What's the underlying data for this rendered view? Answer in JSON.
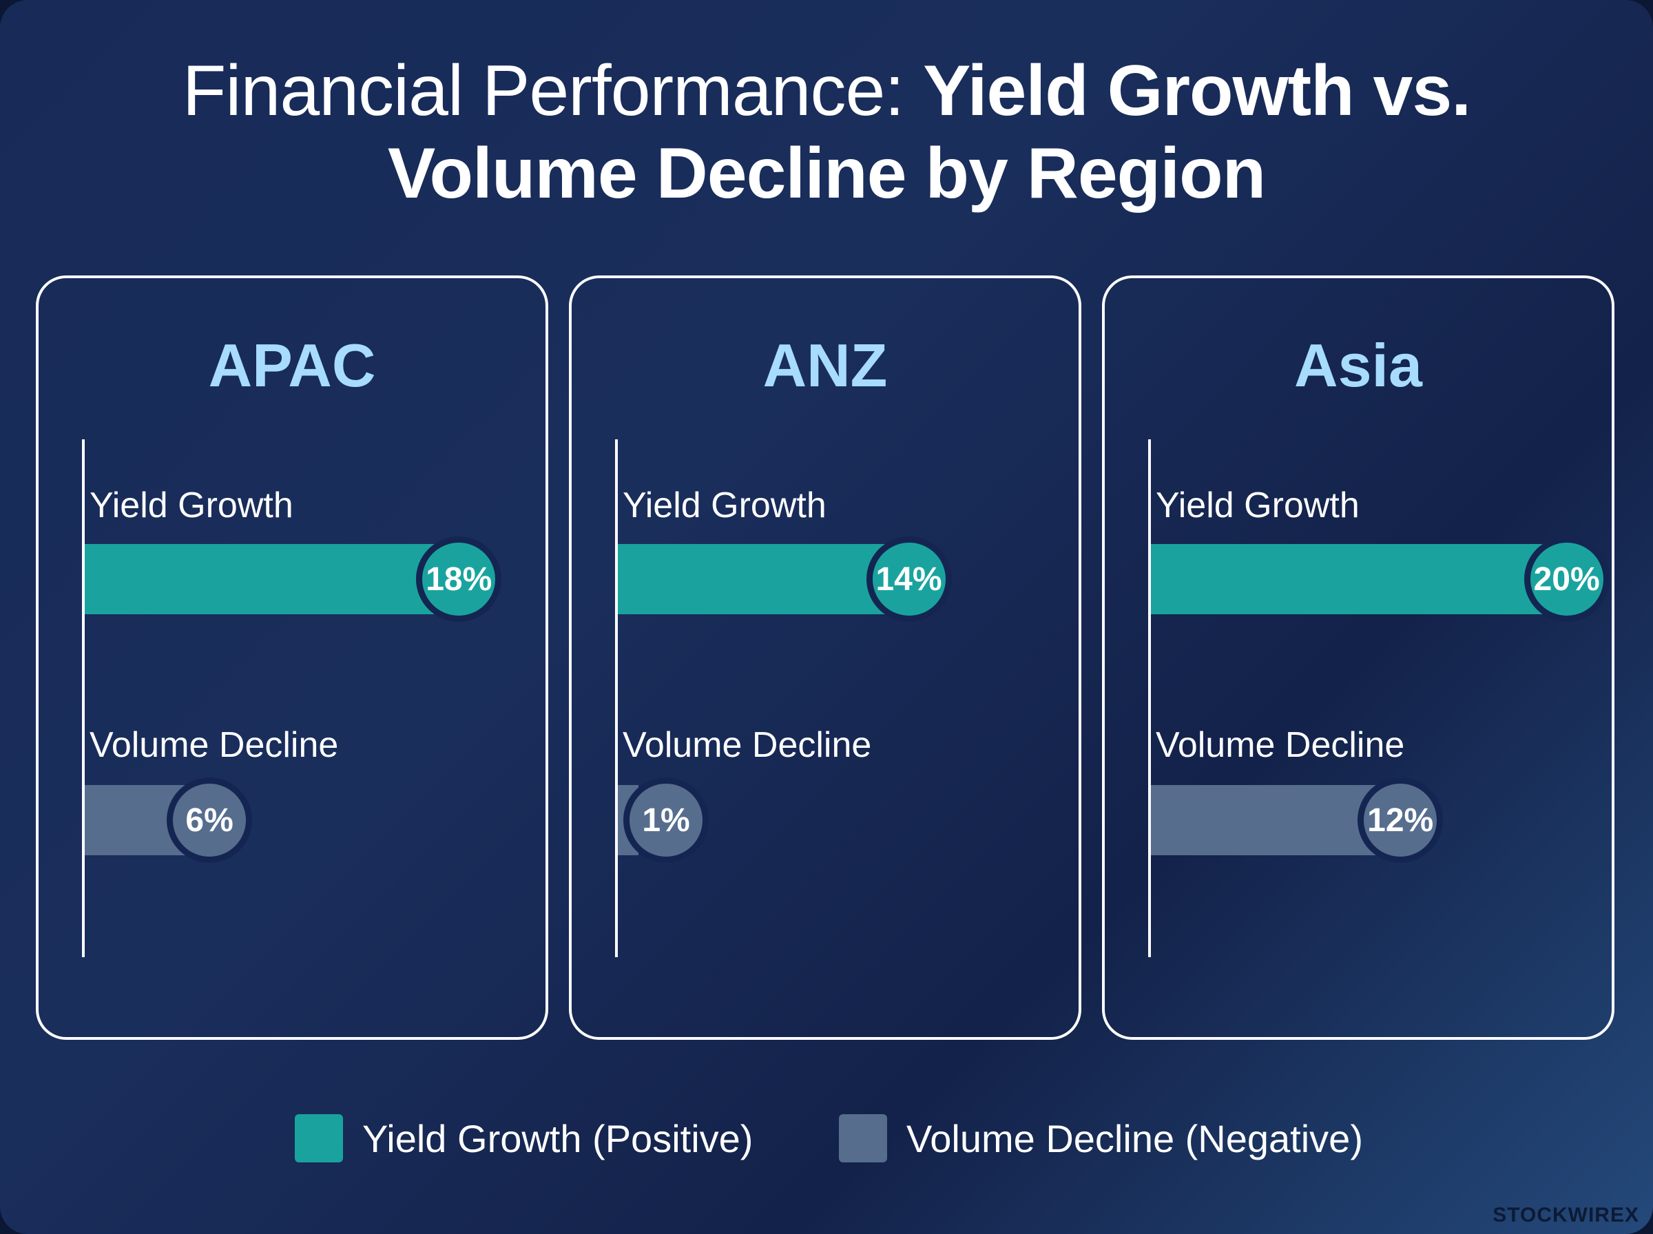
{
  "title": {
    "light": "Financial Performance: ",
    "bold_line1": "Yield Growth vs.",
    "bold_line2": "Volume Decline by Region"
  },
  "chart_data": {
    "type": "bar",
    "categories": [
      "APAC",
      "ANZ",
      "Asia"
    ],
    "series": [
      {
        "name": "Yield Growth",
        "values": [
          18,
          14,
          20
        ],
        "labels": [
          "18%",
          "14%",
          "20%"
        ]
      },
      {
        "name": "Volume Decline",
        "values": [
          6,
          1,
          12
        ],
        "labels": [
          "6%",
          "1%",
          "12%"
        ]
      }
    ],
    "unit": "%",
    "xlim": [
      0,
      22
    ],
    "orientation": "horizontal",
    "legend": "bottom-center",
    "grid": false
  },
  "legend": {
    "yield_label": "Yield Growth (Positive)",
    "volume_label": "Volume Decline (Negative)"
  },
  "colors": {
    "yield": "#1aa39e",
    "volume": "#566d8e",
    "panel_title": "#a7dcff",
    "background": "#172a58"
  },
  "watermark": "STOCKWIREX"
}
